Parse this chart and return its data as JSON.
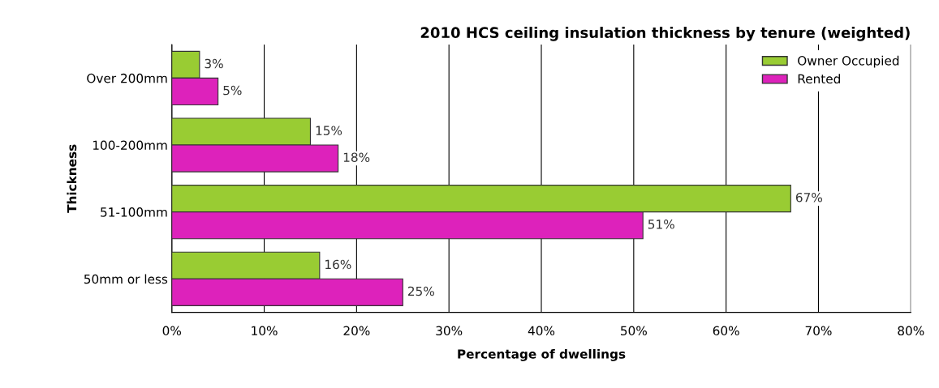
{
  "chart_data": {
    "type": "bar",
    "orientation": "horizontal",
    "title": "2010 HCS ceiling insulation thickness by tenure (weighted)",
    "xlabel": "Percentage of dwellings",
    "ylabel": "Thickness",
    "categories": [
      "Over 200mm",
      "100-200mm",
      "51-100mm",
      "50mm or less"
    ],
    "series": [
      {
        "name": "Owner Occupied",
        "color": "#99cc33",
        "values": [
          3,
          15,
          67,
          16
        ],
        "value_labels": [
          "3%",
          "15%",
          "67%",
          "16%"
        ]
      },
      {
        "name": "Rented",
        "color": "#dd22bb",
        "values": [
          5,
          18,
          51,
          25
        ],
        "value_labels": [
          "5%",
          "18%",
          "51%",
          "25%"
        ]
      }
    ],
    "xlim": [
      0,
      80
    ],
    "xticks": [
      {
        "value": 0,
        "label": "0%"
      },
      {
        "value": 10,
        "label": "10%"
      },
      {
        "value": 20,
        "label": "20%"
      },
      {
        "value": 30,
        "label": "30%"
      },
      {
        "value": 40,
        "label": "40%"
      },
      {
        "value": 50,
        "label": "50%"
      },
      {
        "value": 60,
        "label": "60%"
      },
      {
        "value": 70,
        "label": "70%"
      },
      {
        "value": 80,
        "label": "80%"
      }
    ],
    "grid": "x",
    "legend": "top right"
  }
}
